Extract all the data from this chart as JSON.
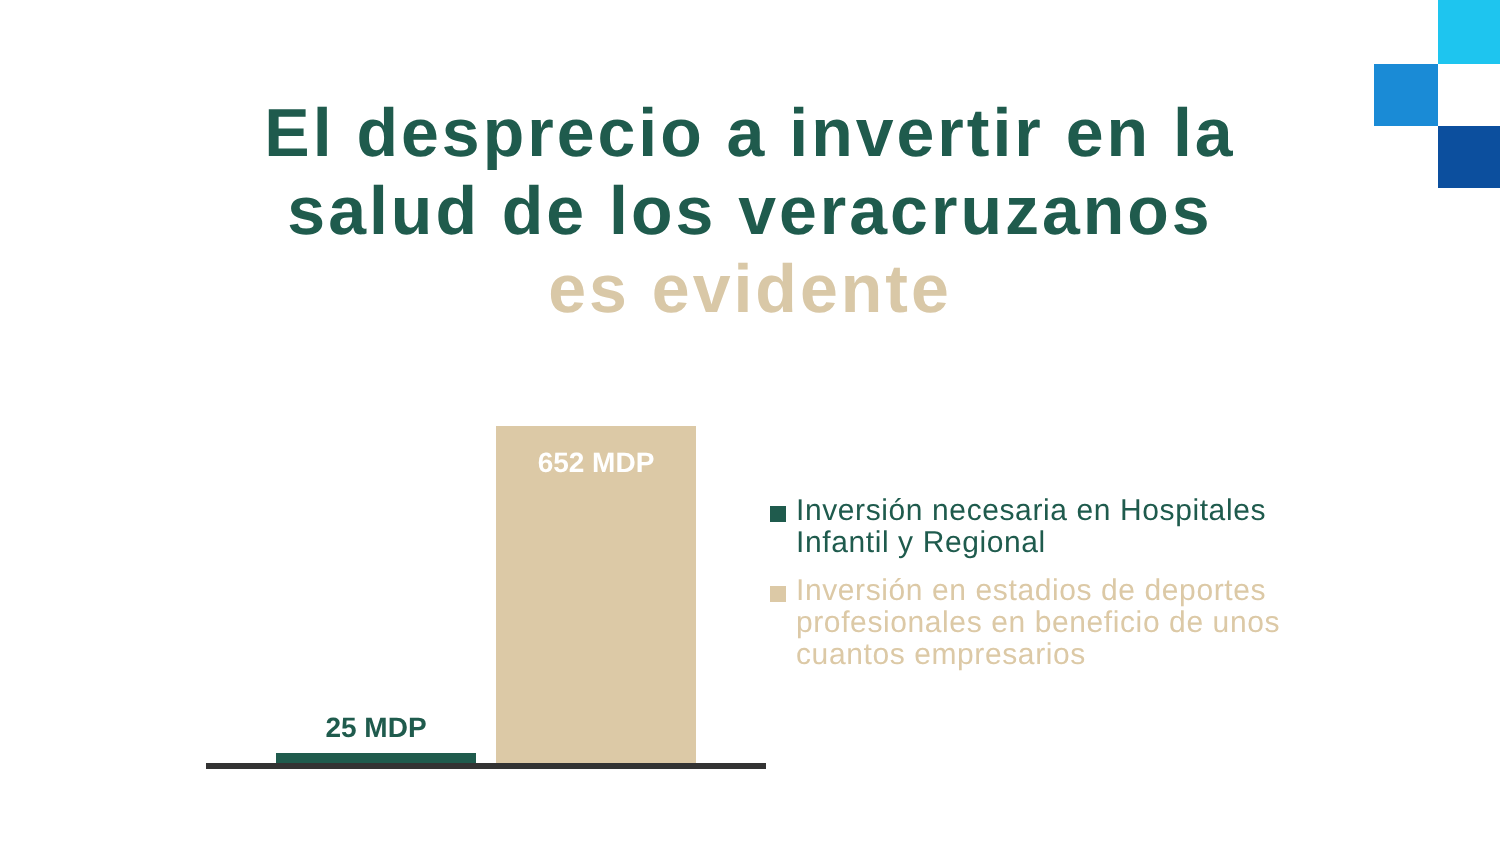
{
  "chart_data": {
    "type": "bar",
    "title": "El desprecio a invertir en la salud de los veracruzanos",
    "subtitle": "es evidente",
    "categories": [
      null
    ],
    "series": [
      {
        "name": "Inversión necesaria en Hospitales Infantil y Regional",
        "color": "#1f5b4d",
        "values": [
          25
        ],
        "value_labels": [
          "25 MDP"
        ]
      },
      {
        "name": "Inversión en estadios de deportes profesionales en beneficio de unos cuantos empresarios",
        "color": "#dcc9a6",
        "values": [
          652
        ],
        "value_labels": [
          "652 MDP"
        ]
      }
    ],
    "legend": "right"
  }
}
